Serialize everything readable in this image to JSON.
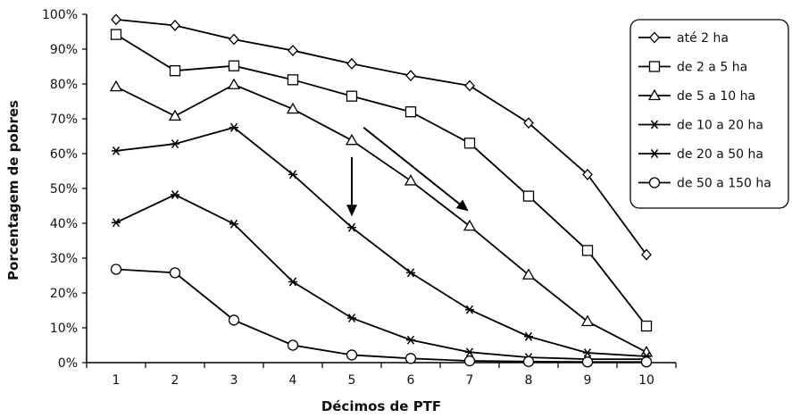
{
  "chart_data": {
    "type": "line",
    "title": "",
    "xlabel": "Décimos de PTF",
    "ylabel": "Porcentagem de pobres",
    "x": [
      1,
      2,
      3,
      4,
      5,
      6,
      7,
      8,
      9,
      10
    ],
    "ylim": [
      0,
      100
    ],
    "yticks": [
      0,
      10,
      20,
      30,
      40,
      50,
      60,
      70,
      80,
      90,
      100
    ],
    "ytick_labels": [
      "0%",
      "10%",
      "20%",
      "30%",
      "40%",
      "50%",
      "60%",
      "70%",
      "80%",
      "90%",
      "100%"
    ],
    "xtick_labels": [
      "1",
      "2",
      "3",
      "4",
      "5",
      "6",
      "7",
      "8",
      "9",
      "10"
    ],
    "grid": false,
    "legend_position": "top-right",
    "series": [
      {
        "name": "até 2 ha",
        "marker": "diamond",
        "values": [
          98.5,
          96.8,
          92.8,
          89.6,
          85.8,
          82.4,
          79.5,
          68.8,
          54.0,
          31.0
        ]
      },
      {
        "name": "de 2 a 5 ha",
        "marker": "square",
        "values": [
          94.2,
          83.8,
          85.2,
          81.2,
          76.5,
          72.0,
          63.0,
          47.8,
          32.2,
          10.5
        ]
      },
      {
        "name": "de 5 a 10 ha",
        "marker": "triangle",
        "values": [
          79.2,
          70.8,
          79.8,
          72.8,
          63.8,
          52.2,
          39.2,
          25.2,
          11.8,
          3.0
        ]
      },
      {
        "name": "de 10 a 20 ha",
        "marker": "asterisk",
        "values": [
          60.8,
          62.8,
          67.5,
          54.0,
          38.8,
          25.8,
          15.2,
          7.5,
          2.8,
          1.8
        ]
      },
      {
        "name": "de 20 a 50 ha",
        "marker": "asterisk",
        "values": [
          40.2,
          48.2,
          39.8,
          23.2,
          12.8,
          6.5,
          3.0,
          1.5,
          1.0,
          1.0
        ]
      },
      {
        "name": "de 50 a 150 ha",
        "marker": "circle",
        "values": [
          26.8,
          25.8,
          12.2,
          5.0,
          2.2,
          1.2,
          0.5,
          0.3,
          0.2,
          0.2
        ]
      }
    ],
    "arrows": [
      {
        "from": [
          5.0,
          59.0
        ],
        "to": [
          5.0,
          42.0
        ]
      },
      {
        "from": [
          5.2,
          67.5
        ],
        "to": [
          6.98,
          43.5
        ]
      }
    ]
  }
}
